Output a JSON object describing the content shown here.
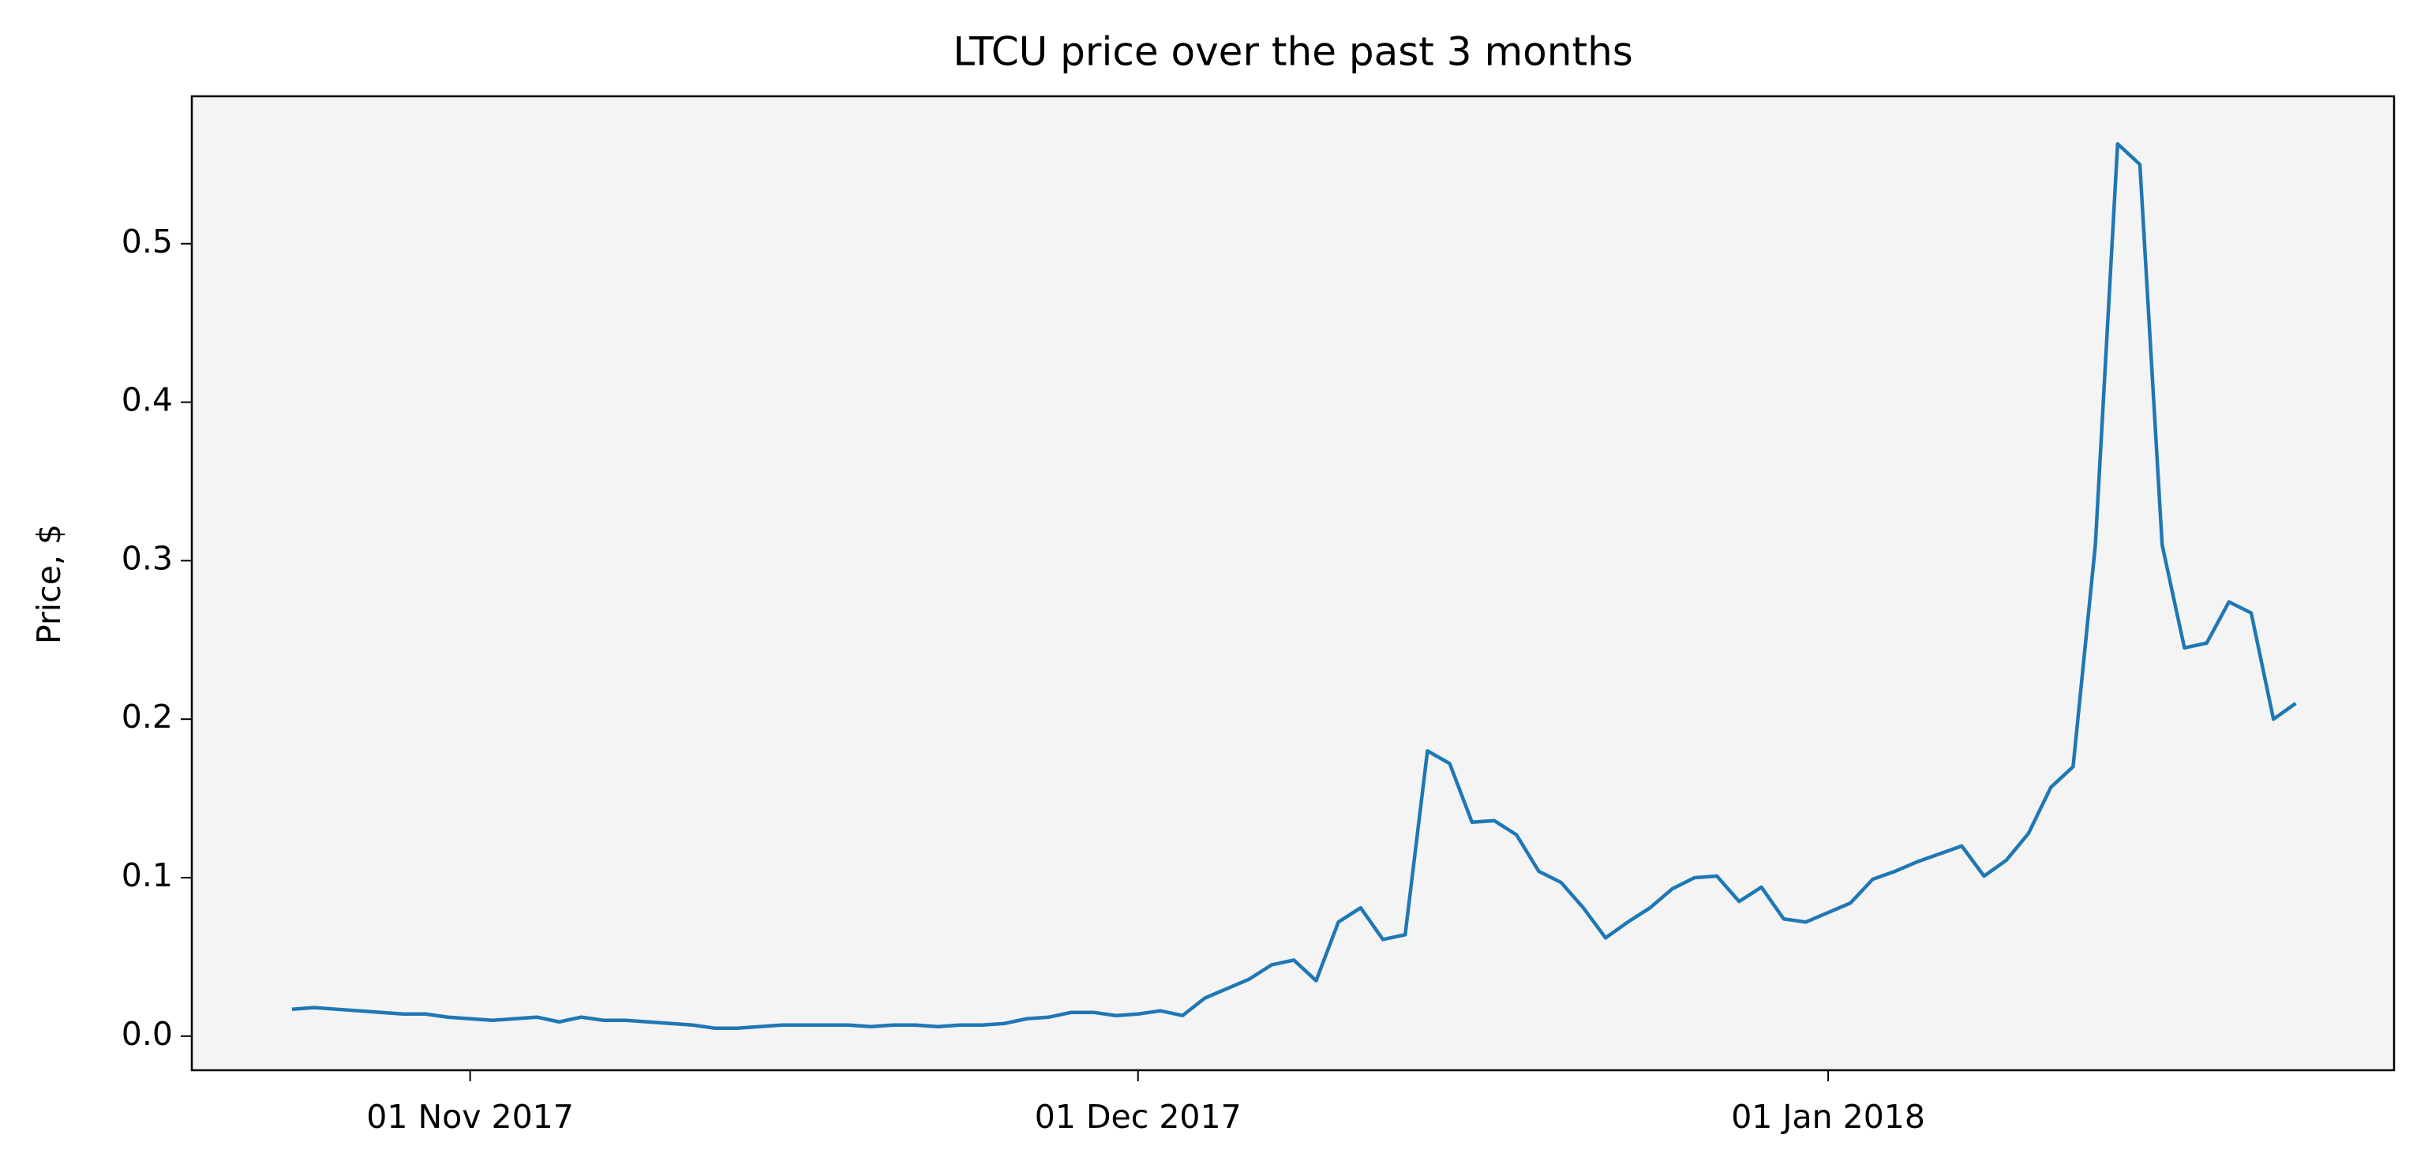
{
  "chart_data": {
    "type": "line",
    "title": "LTCU price over the past 3 months",
    "y_label": "Price, $",
    "color": "#1f77b4",
    "background": "#f4f4f4",
    "grid": false,
    "x": [
      "2017-10-24",
      "2017-10-25",
      "2017-10-26",
      "2017-10-27",
      "2017-10-28",
      "2017-10-29",
      "2017-10-30",
      "2017-10-31",
      "2017-11-01",
      "2017-11-02",
      "2017-11-03",
      "2017-11-04",
      "2017-11-05",
      "2017-11-06",
      "2017-11-07",
      "2017-11-08",
      "2017-11-09",
      "2017-11-10",
      "2017-11-11",
      "2017-11-12",
      "2017-11-13",
      "2017-11-14",
      "2017-11-15",
      "2017-11-16",
      "2017-11-17",
      "2017-11-18",
      "2017-11-19",
      "2017-11-20",
      "2017-11-21",
      "2017-11-22",
      "2017-11-23",
      "2017-11-24",
      "2017-11-25",
      "2017-11-26",
      "2017-11-27",
      "2017-11-28",
      "2017-11-29",
      "2017-11-30",
      "2017-12-01",
      "2017-12-02",
      "2017-12-03",
      "2017-12-04",
      "2017-12-05",
      "2017-12-06",
      "2017-12-07",
      "2017-12-08",
      "2017-12-09",
      "2017-12-10",
      "2017-12-11",
      "2017-12-12",
      "2017-12-13",
      "2017-12-14",
      "2017-12-15",
      "2017-12-16",
      "2017-12-17",
      "2017-12-18",
      "2017-12-19",
      "2017-12-20",
      "2017-12-21",
      "2017-12-22",
      "2017-12-23",
      "2017-12-24",
      "2017-12-25",
      "2017-12-26",
      "2017-12-27",
      "2017-12-28",
      "2017-12-29",
      "2017-12-30",
      "2017-12-31",
      "2018-01-01",
      "2018-01-02",
      "2018-01-03",
      "2018-01-04",
      "2018-01-05",
      "2018-01-06",
      "2018-01-07",
      "2018-01-08",
      "2018-01-09",
      "2018-01-10",
      "2018-01-11",
      "2018-01-12",
      "2018-01-13",
      "2018-01-14",
      "2018-01-15",
      "2018-01-16",
      "2018-01-17",
      "2018-01-18",
      "2018-01-19",
      "2018-01-20",
      "2018-01-21",
      "2018-01-22"
    ],
    "values": [
      0.017,
      0.018,
      0.017,
      0.016,
      0.015,
      0.014,
      0.014,
      0.012,
      0.011,
      0.01,
      0.011,
      0.012,
      0.009,
      0.012,
      0.01,
      0.01,
      0.009,
      0.008,
      0.007,
      0.005,
      0.005,
      0.006,
      0.007,
      0.007,
      0.007,
      0.007,
      0.006,
      0.007,
      0.007,
      0.006,
      0.007,
      0.007,
      0.008,
      0.011,
      0.012,
      0.015,
      0.015,
      0.013,
      0.014,
      0.016,
      0.013,
      0.024,
      0.03,
      0.036,
      0.045,
      0.048,
      0.035,
      0.072,
      0.081,
      0.061,
      0.064,
      0.18,
      0.172,
      0.135,
      0.136,
      0.127,
      0.104,
      0.097,
      0.081,
      0.062,
      0.072,
      0.081,
      0.093,
      0.1,
      0.101,
      0.085,
      0.094,
      0.074,
      0.072,
      0.078,
      0.084,
      0.099,
      0.104,
      0.11,
      0.115,
      0.12,
      0.101,
      0.111,
      0.128,
      0.157,
      0.17,
      0.31,
      0.563,
      0.55,
      0.31,
      0.245,
      0.248,
      0.274,
      0.267,
      0.2,
      0.21
    ],
    "xlim": [
      "2017-10-19T12:00",
      "2018-01-26T10:00"
    ],
    "xticks": [
      {
        "value": "2017-11-01",
        "label": "01 Nov 2017"
      },
      {
        "value": "2017-12-01",
        "label": "01 Dec 2017"
      },
      {
        "value": "2018-01-01",
        "label": "01 Jan 2018"
      }
    ],
    "ylim": [
      -0.0215,
      0.593
    ],
    "yticks": [
      {
        "value": 0,
        "label": "0.0"
      },
      0.1,
      0.2,
      0.3,
      0.4,
      0.5
    ]
  }
}
